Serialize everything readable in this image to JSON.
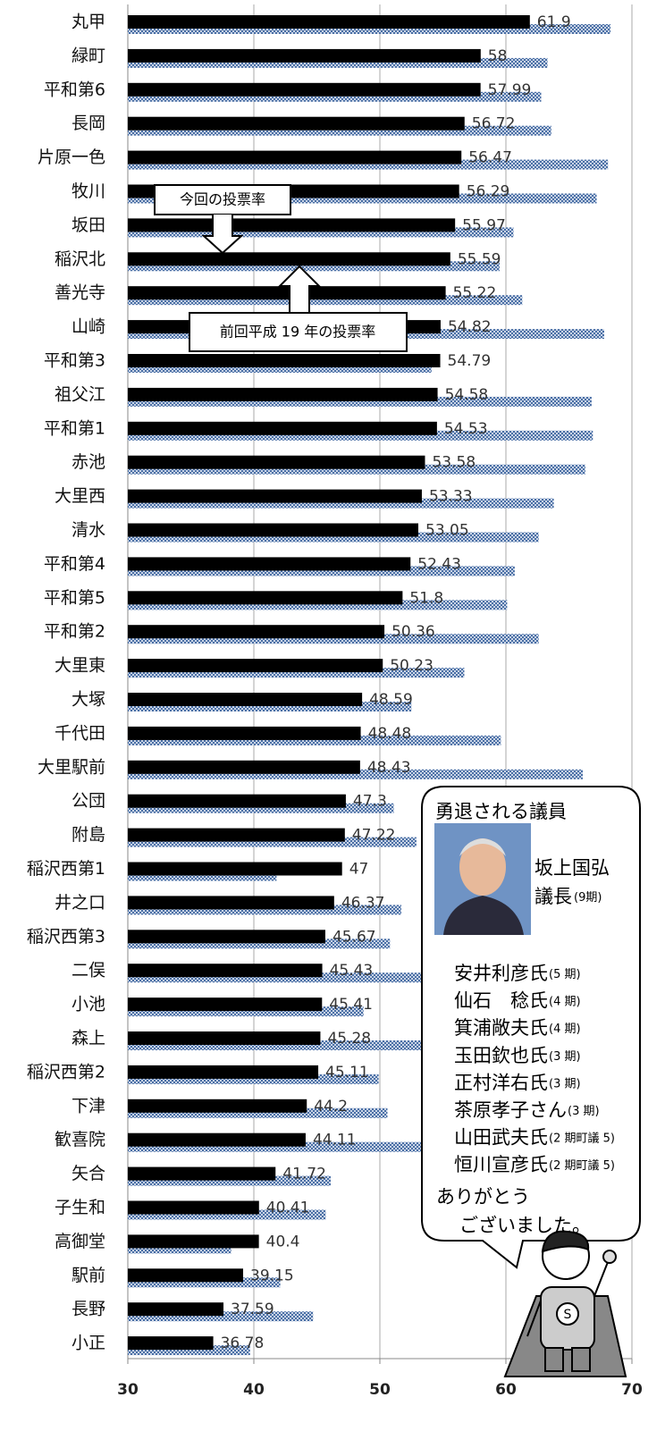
{
  "chart_data": {
    "type": "hbar",
    "categories": [
      "丸甲",
      "緑町",
      "平和第6",
      "長岡",
      "片原一色",
      "牧川",
      "坂田",
      "稲沢北",
      "善光寺",
      "山崎",
      "平和第3",
      "祖父江",
      "平和第1",
      "赤池",
      "大里西",
      "清水",
      "平和第4",
      "平和第5",
      "平和第2",
      "大里東",
      "大塚",
      "千代田",
      "大里駅前",
      "公団",
      "附島",
      "稲沢西第1",
      "井之口",
      "稲沢西第3",
      "二俣",
      "小池",
      "森上",
      "稲沢西第2",
      "下津",
      "歓喜院",
      "矢合",
      "子生和",
      "高御堂",
      "駅前",
      "長野",
      "小正"
    ],
    "series": [
      {
        "name": "今回の投票率",
        "color": "#000000",
        "values": [
          61.9,
          58,
          57.99,
          56.72,
          56.47,
          56.29,
          55.97,
          55.59,
          55.22,
          54.82,
          54.79,
          54.58,
          54.53,
          53.58,
          53.33,
          53.05,
          52.43,
          51.8,
          50.36,
          50.23,
          48.59,
          48.48,
          48.43,
          47.3,
          47.22,
          47,
          46.37,
          45.67,
          45.43,
          45.41,
          45.28,
          45.11,
          44.2,
          44.11,
          41.72,
          40.41,
          40.4,
          39.15,
          37.59,
          36.78
        ]
      },
      {
        "name": "前回平成 19 年の投票率",
        "color": "#4a6fa5",
        "values": [
          68.3,
          63.3,
          62.8,
          63.6,
          68.1,
          67.2,
          60.6,
          59.5,
          61.3,
          67.8,
          54.1,
          66.8,
          66.9,
          66.3,
          63.8,
          62.6,
          60.7,
          60.1,
          62.6,
          56.7,
          52.5,
          59.6,
          66.1,
          51.1,
          52.9,
          41.8,
          51.7,
          50.8,
          53.5,
          48.7,
          53.5,
          49.9,
          50.6,
          54,
          46.1,
          45.7,
          38.2,
          42.1,
          44.7,
          39.7
        ]
      }
    ],
    "xlim": [
      30,
      70
    ],
    "xticks": [
      30,
      40,
      50,
      60,
      70
    ],
    "grid": true
  },
  "bubble": {
    "title": "勇退される議員",
    "chair": {
      "name": "坂上国弘",
      "role": "議長",
      "term": "(9期)"
    },
    "members": [
      {
        "name": "安井利彦氏",
        "term": "(5 期)"
      },
      {
        "name": "仙石　稔氏",
        "term": "(4 期)"
      },
      {
        "name": "箕浦敞夫氏",
        "term": "(4 期)"
      },
      {
        "name": "玉田欽也氏",
        "term": "(3 期)"
      },
      {
        "name": "正村洋右氏",
        "term": "(3 期)"
      },
      {
        "name": "茶原孝子さん",
        "term": "(3 期)"
      },
      {
        "name": "山田武夫氏",
        "term": "(2 期町議 5)"
      },
      {
        "name": "恒川宣彦氏",
        "term": "(2 期町議 5)"
      }
    ],
    "closing": [
      "ありがとう",
      "ございました。"
    ]
  }
}
